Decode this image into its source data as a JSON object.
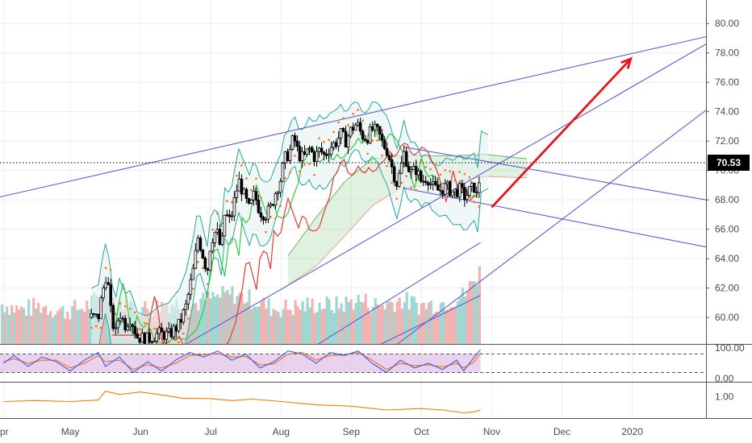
{
  "colors": {
    "up": "#000000",
    "down": "#000000",
    "bb": "#26a69a",
    "bb_fill": "#e6f4f1",
    "ma_green": "#2ecc40",
    "ma_red": "#e53935",
    "sar": "#ff6d00",
    "cloud_green": "#a5d6a7",
    "cloud_red": "#ef9a9a",
    "trend": "#5c5cd6",
    "arrow": "#e8141a",
    "vol_up": "#80cbc4",
    "vol_down": "#ef9a9a",
    "stoch_k": "#2962ff",
    "stoch_d": "#ff6d00",
    "stoch_band": "#e1bee7",
    "osc": "#f57c00",
    "price_tag": "#000000",
    "grid": "#eeeeee"
  },
  "chart_data": {
    "type": "candlestick",
    "x_axis": {
      "labels": [
        "pr",
        "May",
        "Jun",
        "Jul",
        "Aug",
        "Sep",
        "Oct",
        "Nov",
        "Dec",
        "2020"
      ],
      "label_months": [
        3.05,
        4,
        5,
        6,
        7,
        8,
        9,
        10,
        11,
        12
      ],
      "range_months": [
        3,
        13.05
      ]
    },
    "y_axis": {
      "ticks": [
        "80.00",
        "78.00",
        "76.00",
        "74.00",
        "72.00",
        "70.00",
        "68.00",
        "66.00",
        "64.00",
        "62.00",
        "60.00"
      ],
      "range": [
        58.2,
        81.6
      ]
    },
    "last_price": "70.53",
    "last_price_value": 70.53,
    "ohlc_path": [
      [
        4.4,
        60.0
      ],
      [
        4.45,
        61.5
      ],
      [
        4.52,
        63.1
      ],
      [
        4.58,
        60.2
      ],
      [
        4.64,
        58.8
      ],
      [
        4.7,
        60.4
      ],
      [
        4.78,
        59.5
      ],
      [
        4.86,
        60.0
      ],
      [
        4.95,
        58.7
      ],
      [
        5.1,
        58.5
      ],
      [
        5.25,
        58.9
      ],
      [
        5.4,
        58.8
      ],
      [
        5.55,
        59.5
      ],
      [
        5.65,
        60.8
      ],
      [
        5.75,
        63.2
      ],
      [
        5.82,
        65.5
      ],
      [
        5.88,
        64.4
      ],
      [
        5.95,
        63.1
      ],
      [
        6.0,
        65.2
      ],
      [
        6.08,
        66.0
      ],
      [
        6.15,
        64.5
      ],
      [
        6.2,
        67.1
      ],
      [
        6.28,
        66.5
      ],
      [
        6.35,
        68.3
      ],
      [
        6.4,
        69.3
      ],
      [
        6.48,
        68.2
      ],
      [
        6.55,
        67.3
      ],
      [
        6.62,
        68.4
      ],
      [
        6.7,
        67.2
      ],
      [
        6.78,
        67.0
      ],
      [
        6.85,
        67.4
      ],
      [
        6.92,
        68.5
      ],
      [
        7.0,
        69.5
      ],
      [
        7.05,
        70.8
      ],
      [
        7.12,
        71.2
      ],
      [
        7.18,
        72.3
      ],
      [
        7.25,
        71.1
      ],
      [
        7.32,
        70.8
      ],
      [
        7.4,
        71.5
      ],
      [
        7.48,
        70.9
      ],
      [
        7.55,
        71.4
      ],
      [
        7.62,
        71.0
      ],
      [
        7.7,
        71.6
      ],
      [
        7.78,
        71.9
      ],
      [
        7.85,
        72.5
      ],
      [
        7.92,
        72.0
      ],
      [
        8.0,
        72.8
      ],
      [
        8.08,
        73.2
      ],
      [
        8.15,
        72.4
      ],
      [
        8.22,
        72.2
      ],
      [
        8.3,
        72.8
      ],
      [
        8.38,
        72.6
      ],
      [
        8.45,
        71.8
      ],
      [
        8.52,
        71.3
      ],
      [
        8.58,
        70.2
      ],
      [
        8.65,
        69.1
      ],
      [
        8.7,
        70.0
      ],
      [
        8.76,
        71.4
      ],
      [
        8.8,
        70.3
      ],
      [
        8.86,
        69.8
      ],
      [
        8.92,
        70.1
      ],
      [
        9.0,
        69.2
      ],
      [
        9.08,
        69.6
      ],
      [
        9.15,
        68.9
      ],
      [
        9.25,
        68.6
      ],
      [
        9.35,
        68.9
      ],
      [
        9.45,
        68.5
      ],
      [
        9.55,
        68.7
      ],
      [
        9.62,
        68.2
      ],
      [
        9.68,
        68.6
      ],
      [
        9.75,
        68.9
      ],
      [
        9.8,
        68.0
      ],
      [
        9.84,
        70.6
      ]
    ],
    "volume_path": [
      [
        3.05,
        60.9
      ],
      [
        3.3,
        60.5
      ],
      [
        3.6,
        60.8
      ],
      [
        3.9,
        60.4
      ],
      [
        4.2,
        60.7
      ],
      [
        4.5,
        61.5
      ],
      [
        4.8,
        60.9
      ],
      [
        5.1,
        60.6
      ],
      [
        5.4,
        61.0
      ],
      [
        5.7,
        60.8
      ],
      [
        6.0,
        61.3
      ],
      [
        6.3,
        61.6
      ],
      [
        6.6,
        61.2
      ],
      [
        6.9,
        60.6
      ],
      [
        7.2,
        60.7
      ],
      [
        7.5,
        60.9
      ],
      [
        7.8,
        60.8
      ],
      [
        8.1,
        61.2
      ],
      [
        8.4,
        60.8
      ],
      [
        8.7,
        61.2
      ],
      [
        9.0,
        60.8
      ],
      [
        9.3,
        61.0
      ],
      [
        9.6,
        61.5
      ],
      [
        9.8,
        62.8
      ],
      [
        9.84,
        64.0
      ]
    ],
    "trend_lines": [
      [
        [
          3.0,
          68.2
        ],
        [
          13.05,
          79.1
        ]
      ],
      [
        [
          3.95,
          53.5
        ],
        [
          13.05,
          78.6
        ]
      ],
      [
        [
          7.5,
          54.0
        ],
        [
          13.05,
          74.1
        ]
      ],
      [
        [
          8.75,
          71.6
        ],
        [
          13.05,
          68.0
        ]
      ],
      [
        [
          8.75,
          68.8
        ],
        [
          13.05,
          64.8
        ]
      ],
      [
        [
          7.2,
          57.2
        ],
        [
          9.84,
          65.1
        ]
      ],
      [
        [
          8.0,
          57.2
        ],
        [
          9.84,
          61.5
        ]
      ]
    ],
    "projection_arrow": {
      "from": [
        10.0,
        67.5
      ],
      "to": [
        11.98,
        77.6
      ]
    },
    "cloud": {
      "top": [
        [
          7.1,
          64.2
        ],
        [
          7.5,
          66.8
        ],
        [
          7.9,
          69.2
        ],
        [
          8.3,
          70.8
        ],
        [
          8.7,
          71.0
        ],
        [
          9.1,
          71.0
        ],
        [
          9.5,
          71.0
        ],
        [
          9.9,
          71.1
        ],
        [
          10.5,
          70.8
        ]
      ],
      "bottom": [
        [
          7.1,
          62.2
        ],
        [
          7.5,
          63.5
        ],
        [
          7.9,
          65.5
        ],
        [
          8.3,
          67.6
        ],
        [
          8.7,
          68.8
        ],
        [
          9.1,
          69.0
        ],
        [
          9.5,
          69.2
        ],
        [
          9.9,
          69.6
        ],
        [
          10.5,
          69.5
        ]
      ]
    },
    "stoch": {
      "levels": [
        "100.00",
        "0.00"
      ],
      "range": [
        -10,
        110
      ],
      "band": [
        20,
        80
      ],
      "k": [
        [
          3.05,
          50
        ],
        [
          3.2,
          75
        ],
        [
          3.4,
          40
        ],
        [
          3.6,
          70
        ],
        [
          3.8,
          55
        ],
        [
          4.0,
          25
        ],
        [
          4.2,
          60
        ],
        [
          4.4,
          85
        ],
        [
          4.5,
          40
        ],
        [
          4.7,
          70
        ],
        [
          4.9,
          20
        ],
        [
          5.1,
          55
        ],
        [
          5.3,
          25
        ],
        [
          5.5,
          60
        ],
        [
          5.7,
          85
        ],
        [
          5.9,
          70
        ],
        [
          6.1,
          90
        ],
        [
          6.3,
          60
        ],
        [
          6.5,
          80
        ],
        [
          6.7,
          35
        ],
        [
          6.9,
          55
        ],
        [
          7.1,
          90
        ],
        [
          7.3,
          80
        ],
        [
          7.5,
          50
        ],
        [
          7.7,
          85
        ],
        [
          7.9,
          75
        ],
        [
          8.1,
          90
        ],
        [
          8.3,
          50
        ],
        [
          8.5,
          20
        ],
        [
          8.7,
          60
        ],
        [
          8.9,
          35
        ],
        [
          9.1,
          50
        ],
        [
          9.3,
          30
        ],
        [
          9.5,
          60
        ],
        [
          9.6,
          25
        ],
        [
          9.75,
          70
        ],
        [
          9.84,
          95
        ]
      ],
      "d": [
        [
          3.05,
          55
        ],
        [
          3.2,
          65
        ],
        [
          3.4,
          50
        ],
        [
          3.6,
          60
        ],
        [
          3.8,
          60
        ],
        [
          4.0,
          35
        ],
        [
          4.2,
          50
        ],
        [
          4.4,
          75
        ],
        [
          4.5,
          55
        ],
        [
          4.7,
          60
        ],
        [
          4.9,
          30
        ],
        [
          5.1,
          45
        ],
        [
          5.3,
          35
        ],
        [
          5.5,
          50
        ],
        [
          5.7,
          75
        ],
        [
          5.9,
          78
        ],
        [
          6.1,
          82
        ],
        [
          6.3,
          70
        ],
        [
          6.5,
          72
        ],
        [
          6.7,
          45
        ],
        [
          6.9,
          48
        ],
        [
          7.1,
          80
        ],
        [
          7.3,
          85
        ],
        [
          7.5,
          60
        ],
        [
          7.7,
          75
        ],
        [
          7.9,
          78
        ],
        [
          8.1,
          85
        ],
        [
          8.3,
          60
        ],
        [
          8.5,
          30
        ],
        [
          8.7,
          50
        ],
        [
          8.9,
          42
        ],
        [
          9.1,
          45
        ],
        [
          9.3,
          38
        ],
        [
          9.5,
          50
        ],
        [
          9.6,
          35
        ],
        [
          9.75,
          55
        ],
        [
          9.84,
          85
        ]
      ]
    },
    "oscillator": {
      "ticks": [
        "1.00"
      ],
      "tick_values": [
        1.0
      ],
      "range": [
        0.55,
        1.3
      ],
      "line": [
        [
          3.05,
          0.9
        ],
        [
          3.5,
          0.92
        ],
        [
          4.0,
          0.9
        ],
        [
          4.4,
          0.93
        ],
        [
          4.5,
          1.12
        ],
        [
          4.7,
          1.05
        ],
        [
          5.0,
          1.1
        ],
        [
          5.3,
          1.04
        ],
        [
          5.6,
          0.97
        ],
        [
          6.0,
          0.96
        ],
        [
          6.3,
          0.92
        ],
        [
          6.6,
          0.95
        ],
        [
          7.0,
          0.9
        ],
        [
          7.5,
          0.83
        ],
        [
          8.0,
          0.8
        ],
        [
          8.5,
          0.72
        ],
        [
          9.0,
          0.75
        ],
        [
          9.3,
          0.72
        ],
        [
          9.6,
          0.66
        ],
        [
          9.75,
          0.68
        ],
        [
          9.84,
          0.72
        ]
      ]
    }
  }
}
